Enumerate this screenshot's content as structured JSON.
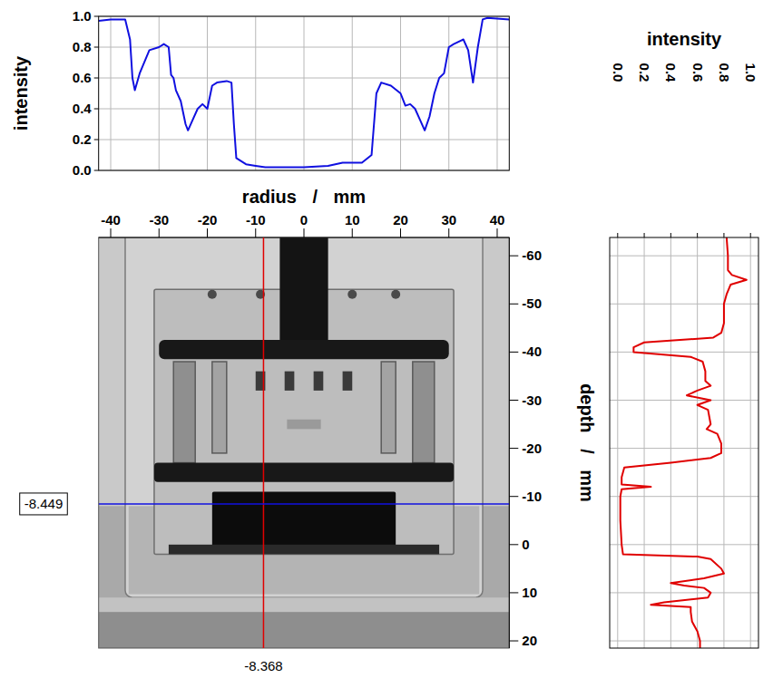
{
  "chart_data": [
    {
      "type": "line",
      "y_label": "intensity",
      "color": "#1010e0",
      "grid": true,
      "tick_labels": "y",
      "xlim": [
        -42.5,
        42.5
      ],
      "xticks": [
        -40,
        -30,
        -20,
        -10,
        0,
        10,
        20,
        30,
        40
      ],
      "ylim": [
        0,
        1
      ],
      "yticks": [
        {
          "value": 0,
          "label": "0.0"
        },
        {
          "value": 0.2,
          "label": "0.2"
        },
        {
          "value": 0.4,
          "label": "0.4"
        },
        {
          "value": 0.6,
          "label": "0.6"
        },
        {
          "value": 0.8,
          "label": "0.8"
        },
        {
          "value": 1,
          "label": "1.0"
        }
      ],
      "x": [
        -42.5,
        -40,
        -37,
        -36,
        -35.5,
        -35,
        -34,
        -32,
        -30,
        -29,
        -28,
        -27.5,
        -27,
        -26.5,
        -25.5,
        -24.5,
        -24,
        -23,
        -22,
        -21,
        -20,
        -19,
        -18,
        -16,
        -15,
        -14.5,
        -14,
        -12,
        -10,
        -8,
        -5,
        0,
        5,
        8,
        12,
        14,
        15,
        16,
        18,
        20,
        21,
        22,
        23,
        24,
        25,
        26,
        27,
        28,
        29,
        30,
        31,
        33,
        34,
        35,
        36,
        37,
        38,
        42.5
      ],
      "values": [
        0.97,
        0.98,
        0.98,
        0.85,
        0.6,
        0.52,
        0.63,
        0.78,
        0.8,
        0.82,
        0.8,
        0.62,
        0.6,
        0.52,
        0.45,
        0.3,
        0.26,
        0.33,
        0.4,
        0.43,
        0.4,
        0.55,
        0.57,
        0.58,
        0.57,
        0.3,
        0.08,
        0.04,
        0.03,
        0.02,
        0.02,
        0.02,
        0.03,
        0.05,
        0.05,
        0.1,
        0.5,
        0.57,
        0.55,
        0.5,
        0.42,
        0.43,
        0.4,
        0.33,
        0.26,
        0.35,
        0.5,
        0.6,
        0.63,
        0.8,
        0.82,
        0.85,
        0.78,
        0.57,
        0.8,
        0.98,
        0.99,
        0.98
      ]
    },
    {
      "type": "image",
      "x_label": "radius / mm",
      "y_label": "depth / mm",
      "xlim": [
        -42.5,
        42.5
      ],
      "xticks": [
        -40,
        -30,
        -20,
        -10,
        0,
        10,
        20,
        30,
        40
      ],
      "ylim": [
        -63.8,
        21.5
      ],
      "yticks": [
        -60,
        -50,
        -40,
        -30,
        -20,
        -10,
        0,
        10,
        20
      ],
      "annotations": [
        {
          "axis": "x",
          "value": -8.368,
          "label": "-8.368",
          "color": "#e00000"
        },
        {
          "axis": "y",
          "value": -8.449,
          "label": "-8.449",
          "color": "#1010e0"
        }
      ]
    },
    {
      "type": "line",
      "orientation": "horizontal",
      "y_label": "intensity",
      "color": "#e00000",
      "grid": true,
      "tick_labels": "y",
      "xlim": [
        -63.8,
        21.5
      ],
      "xticks": [
        -60,
        -50,
        -40,
        -30,
        -20,
        -10,
        0,
        10,
        20
      ],
      "ylim": [
        -0.06,
        1.06
      ],
      "yticks": [
        {
          "value": 0,
          "label": "0.0"
        },
        {
          "value": 0.2,
          "label": "0.2"
        },
        {
          "value": 0.4,
          "label": "0.4"
        },
        {
          "value": 0.6,
          "label": "0.6"
        },
        {
          "value": 0.8,
          "label": "0.8"
        },
        {
          "value": 1,
          "label": "1.0"
        }
      ],
      "x": [
        -63.8,
        -60,
        -57,
        -56,
        -55,
        -54,
        -52,
        -50,
        -46,
        -44,
        -43,
        -42,
        -41,
        -40,
        -39,
        -38,
        -36,
        -34,
        -33,
        -32,
        -31,
        -30,
        -29,
        -28,
        -25,
        -24,
        -23,
        -21,
        -19,
        -18,
        -17,
        -16,
        -14,
        -12.5,
        -12,
        -11.5,
        -10,
        -5,
        0,
        2,
        2.5,
        3,
        5,
        6,
        7,
        8,
        8.5,
        9,
        10,
        11,
        12,
        12.5,
        13,
        14,
        16,
        18,
        20,
        21.5
      ],
      "values": [
        0.82,
        0.83,
        0.83,
        0.86,
        0.97,
        0.85,
        0.82,
        0.8,
        0.8,
        0.78,
        0.72,
        0.2,
        0.12,
        0.12,
        0.55,
        0.64,
        0.66,
        0.66,
        0.7,
        0.6,
        0.52,
        0.7,
        0.6,
        0.68,
        0.7,
        0.67,
        0.75,
        0.78,
        0.78,
        0.7,
        0.4,
        0.05,
        0.03,
        0.03,
        0.25,
        0.03,
        0.02,
        0.02,
        0.03,
        0.04,
        0.6,
        0.7,
        0.78,
        0.8,
        0.65,
        0.4,
        0.5,
        0.65,
        0.7,
        0.68,
        0.35,
        0.25,
        0.55,
        0.55,
        0.56,
        0.6,
        0.62,
        0.62
      ]
    }
  ]
}
